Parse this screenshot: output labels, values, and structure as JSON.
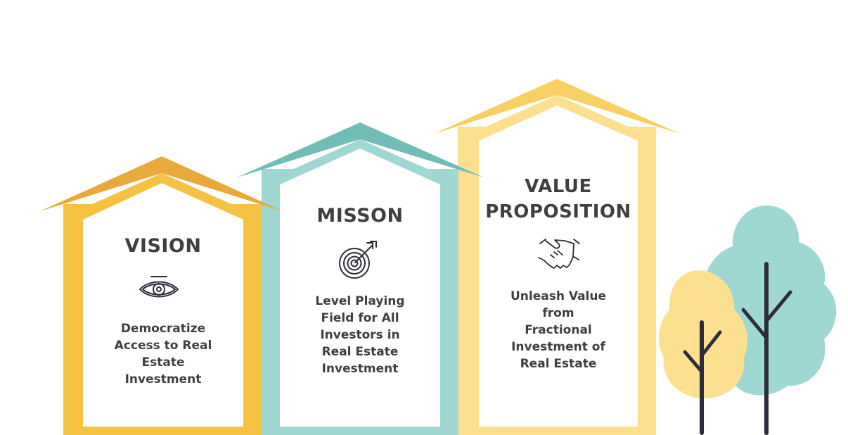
{
  "colors": {
    "vision_frame": "#f6c244",
    "vision_roof": "#e9a93a",
    "mission_frame": "#9fd8d2",
    "mission_roof": "#6fbdb5",
    "value_frame": "#fde08f",
    "value_roof": "#f8cf63",
    "tree_teal": "#9fd8d2",
    "tree_yellow": "#fde08f",
    "trunk": "#2f2c3a",
    "text": "#3f3f40"
  },
  "cards": [
    {
      "title": "VISION",
      "icon": "eye-icon",
      "lines": [
        "Democratize",
        "Access to Real",
        "Estate",
        "Investment"
      ]
    },
    {
      "title": "MISSON",
      "icon": "target-icon",
      "lines": [
        "Level Playing",
        "Field for All",
        "Investors in",
        "Real Estate",
        "Investment"
      ]
    },
    {
      "title_lines": [
        "VALUE",
        "PROPOSITION"
      ],
      "icon": "handshake-icon",
      "lines": [
        "Unleash Value",
        "from",
        "Fractional",
        "Investment of",
        "Real Estate"
      ]
    }
  ],
  "decorations": [
    "teal-tree",
    "yellow-tree"
  ]
}
